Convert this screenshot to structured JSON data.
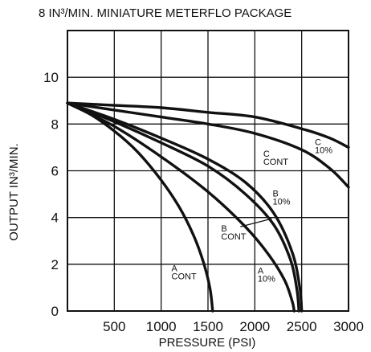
{
  "chart_data": {
    "type": "line",
    "title": "8 IN³/MIN. MINIATURE METERFLO PACKAGE",
    "xlabel": "PRESSURE (PSI)",
    "ylabel": "OUTPUT IN³/MIN.",
    "xlim": [
      0,
      3000
    ],
    "ylim": [
      0,
      12
    ],
    "x_ticks": [
      500,
      1000,
      1500,
      2000,
      2500,
      3000
    ],
    "y_ticks": [
      0,
      2,
      4,
      6,
      8,
      10
    ],
    "grid": true,
    "series": [
      {
        "name": "A CONT",
        "points": [
          [
            0,
            8.9
          ],
          [
            250,
            8.4
          ],
          [
            500,
            7.7
          ],
          [
            750,
            6.8
          ],
          [
            1000,
            5.6
          ],
          [
            1200,
            4.4
          ],
          [
            1350,
            3.2
          ],
          [
            1450,
            2.1
          ],
          [
            1520,
            1.0
          ],
          [
            1550,
            0
          ]
        ]
      },
      {
        "name": "A 10%",
        "points": [
          [
            0,
            8.9
          ],
          [
            500,
            7.9
          ],
          [
            1000,
            6.6
          ],
          [
            1500,
            5.1
          ],
          [
            1900,
            3.6
          ],
          [
            2150,
            2.4
          ],
          [
            2320,
            1.3
          ],
          [
            2400,
            0.4
          ],
          [
            2420,
            0
          ]
        ]
      },
      {
        "name": "B CONT",
        "points": [
          [
            0,
            8.9
          ],
          [
            500,
            8.1
          ],
          [
            1000,
            7.2
          ],
          [
            1500,
            6.2
          ],
          [
            1900,
            5.0
          ],
          [
            2200,
            3.7
          ],
          [
            2380,
            2.2
          ],
          [
            2450,
            0.9
          ],
          [
            2470,
            0
          ]
        ]
      },
      {
        "name": "B 10%",
        "points": [
          [
            0,
            8.9
          ],
          [
            500,
            8.2
          ],
          [
            1000,
            7.4
          ],
          [
            1500,
            6.5
          ],
          [
            1900,
            5.5
          ],
          [
            2200,
            4.2
          ],
          [
            2400,
            2.5
          ],
          [
            2480,
            1.0
          ],
          [
            2500,
            0
          ]
        ]
      },
      {
        "name": "C CONT",
        "points": [
          [
            0,
            8.9
          ],
          [
            500,
            8.6
          ],
          [
            1000,
            8.3
          ],
          [
            1500,
            8.0
          ],
          [
            2000,
            7.6
          ],
          [
            2500,
            6.9
          ],
          [
            2800,
            6.1
          ],
          [
            3000,
            5.3
          ]
        ]
      },
      {
        "name": "C 10%",
        "points": [
          [
            0,
            8.9
          ],
          [
            500,
            8.8
          ],
          [
            1000,
            8.7
          ],
          [
            1500,
            8.5
          ],
          [
            2000,
            8.3
          ],
          [
            2500,
            7.8
          ],
          [
            2800,
            7.4
          ],
          [
            3000,
            7.0
          ]
        ]
      }
    ],
    "annotations": [
      {
        "top": "A",
        "bottom": "CONT",
        "x": 1110,
        "y": 1.7,
        "series": "A CONT"
      },
      {
        "top": "A",
        "bottom": "10%",
        "x": 2030,
        "y": 1.6,
        "series": "A 10%"
      },
      {
        "top": "B",
        "bottom": "CONT",
        "x": 1640,
        "y": 3.4,
        "series": "B CONT"
      },
      {
        "top": "B",
        "bottom": "10%",
        "x": 2190,
        "y": 4.9,
        "series": "B 10%"
      },
      {
        "top": "C",
        "bottom": "CONT",
        "x": 2090,
        "y": 6.6,
        "series": "C CONT"
      },
      {
        "top": "C",
        "bottom": "10%",
        "x": 2640,
        "y": 7.1,
        "series": "C 10%"
      }
    ]
  }
}
